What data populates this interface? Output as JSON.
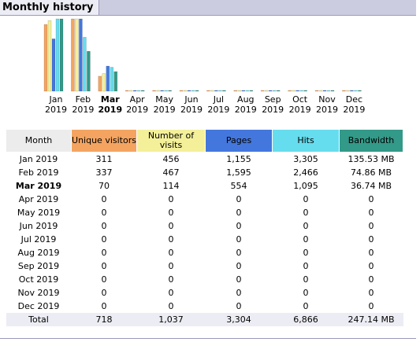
{
  "header": {
    "title": "Monthly history"
  },
  "chart_data": {
    "type": "bar",
    "categories": [
      "Jan 2019",
      "Feb 2019",
      "Mar 2019",
      "Apr 2019",
      "May 2019",
      "Jun 2019",
      "Jul 2019",
      "Aug 2019",
      "Sep 2019",
      "Oct 2019",
      "Nov 2019",
      "Dec 2019"
    ],
    "month_names": [
      "Jan",
      "Feb",
      "Mar",
      "Apr",
      "May",
      "Jun",
      "Jul",
      "Aug",
      "Sep",
      "Oct",
      "Nov",
      "Dec"
    ],
    "years": [
      "2019",
      "2019",
      "2019",
      "2019",
      "2019",
      "2019",
      "2019",
      "2019",
      "2019",
      "2019",
      "2019",
      "2019"
    ],
    "current_index": 2,
    "series": [
      {
        "name": "Unique visitors",
        "color": "#f4a460",
        "values": [
          311,
          337,
          70,
          0,
          0,
          0,
          0,
          0,
          0,
          0,
          0,
          0
        ]
      },
      {
        "name": "Number of visits",
        "color": "#f4f09a",
        "values": [
          456,
          467,
          114,
          0,
          0,
          0,
          0,
          0,
          0,
          0,
          0,
          0
        ]
      },
      {
        "name": "Pages",
        "color": "#4477dd",
        "values": [
          1155,
          1595,
          554,
          0,
          0,
          0,
          0,
          0,
          0,
          0,
          0,
          0
        ]
      },
      {
        "name": "Hits",
        "color": "#66ddee",
        "values": [
          3305,
          2466,
          1095,
          0,
          0,
          0,
          0,
          0,
          0,
          0,
          0,
          0
        ]
      },
      {
        "name": "Bandwidth",
        "color": "#339988",
        "values": [
          135.53,
          74.86,
          36.74,
          0,
          0,
          0,
          0,
          0,
          0,
          0,
          0,
          0
        ]
      }
    ]
  },
  "table": {
    "headers": {
      "month": "Month",
      "unique": "Unique visitors",
      "visits": "Number of visits",
      "pages": "Pages",
      "hits": "Hits",
      "bandwidth": "Bandwidth"
    },
    "rows": [
      {
        "month": "Jan 2019",
        "unique": "311",
        "visits": "456",
        "pages": "1,155",
        "hits": "3,305",
        "bandwidth": "135.53 MB"
      },
      {
        "month": "Feb 2019",
        "unique": "337",
        "visits": "467",
        "pages": "1,595",
        "hits": "2,466",
        "bandwidth": "74.86 MB"
      },
      {
        "month": "Mar 2019",
        "unique": "70",
        "visits": "114",
        "pages": "554",
        "hits": "1,095",
        "bandwidth": "36.74 MB"
      },
      {
        "month": "Apr 2019",
        "unique": "0",
        "visits": "0",
        "pages": "0",
        "hits": "0",
        "bandwidth": "0"
      },
      {
        "month": "May 2019",
        "unique": "0",
        "visits": "0",
        "pages": "0",
        "hits": "0",
        "bandwidth": "0"
      },
      {
        "month": "Jun 2019",
        "unique": "0",
        "visits": "0",
        "pages": "0",
        "hits": "0",
        "bandwidth": "0"
      },
      {
        "month": "Jul 2019",
        "unique": "0",
        "visits": "0",
        "pages": "0",
        "hits": "0",
        "bandwidth": "0"
      },
      {
        "month": "Aug 2019",
        "unique": "0",
        "visits": "0",
        "pages": "0",
        "hits": "0",
        "bandwidth": "0"
      },
      {
        "month": "Sep 2019",
        "unique": "0",
        "visits": "0",
        "pages": "0",
        "hits": "0",
        "bandwidth": "0"
      },
      {
        "month": "Oct 2019",
        "unique": "0",
        "visits": "0",
        "pages": "0",
        "hits": "0",
        "bandwidth": "0"
      },
      {
        "month": "Nov 2019",
        "unique": "0",
        "visits": "0",
        "pages": "0",
        "hits": "0",
        "bandwidth": "0"
      },
      {
        "month": "Dec 2019",
        "unique": "0",
        "visits": "0",
        "pages": "0",
        "hits": "0",
        "bandwidth": "0"
      }
    ],
    "total": {
      "month": "Total",
      "unique": "718",
      "visits": "1,037",
      "pages": "3,304",
      "hits": "6,866",
      "bandwidth": "247.14 MB"
    }
  }
}
